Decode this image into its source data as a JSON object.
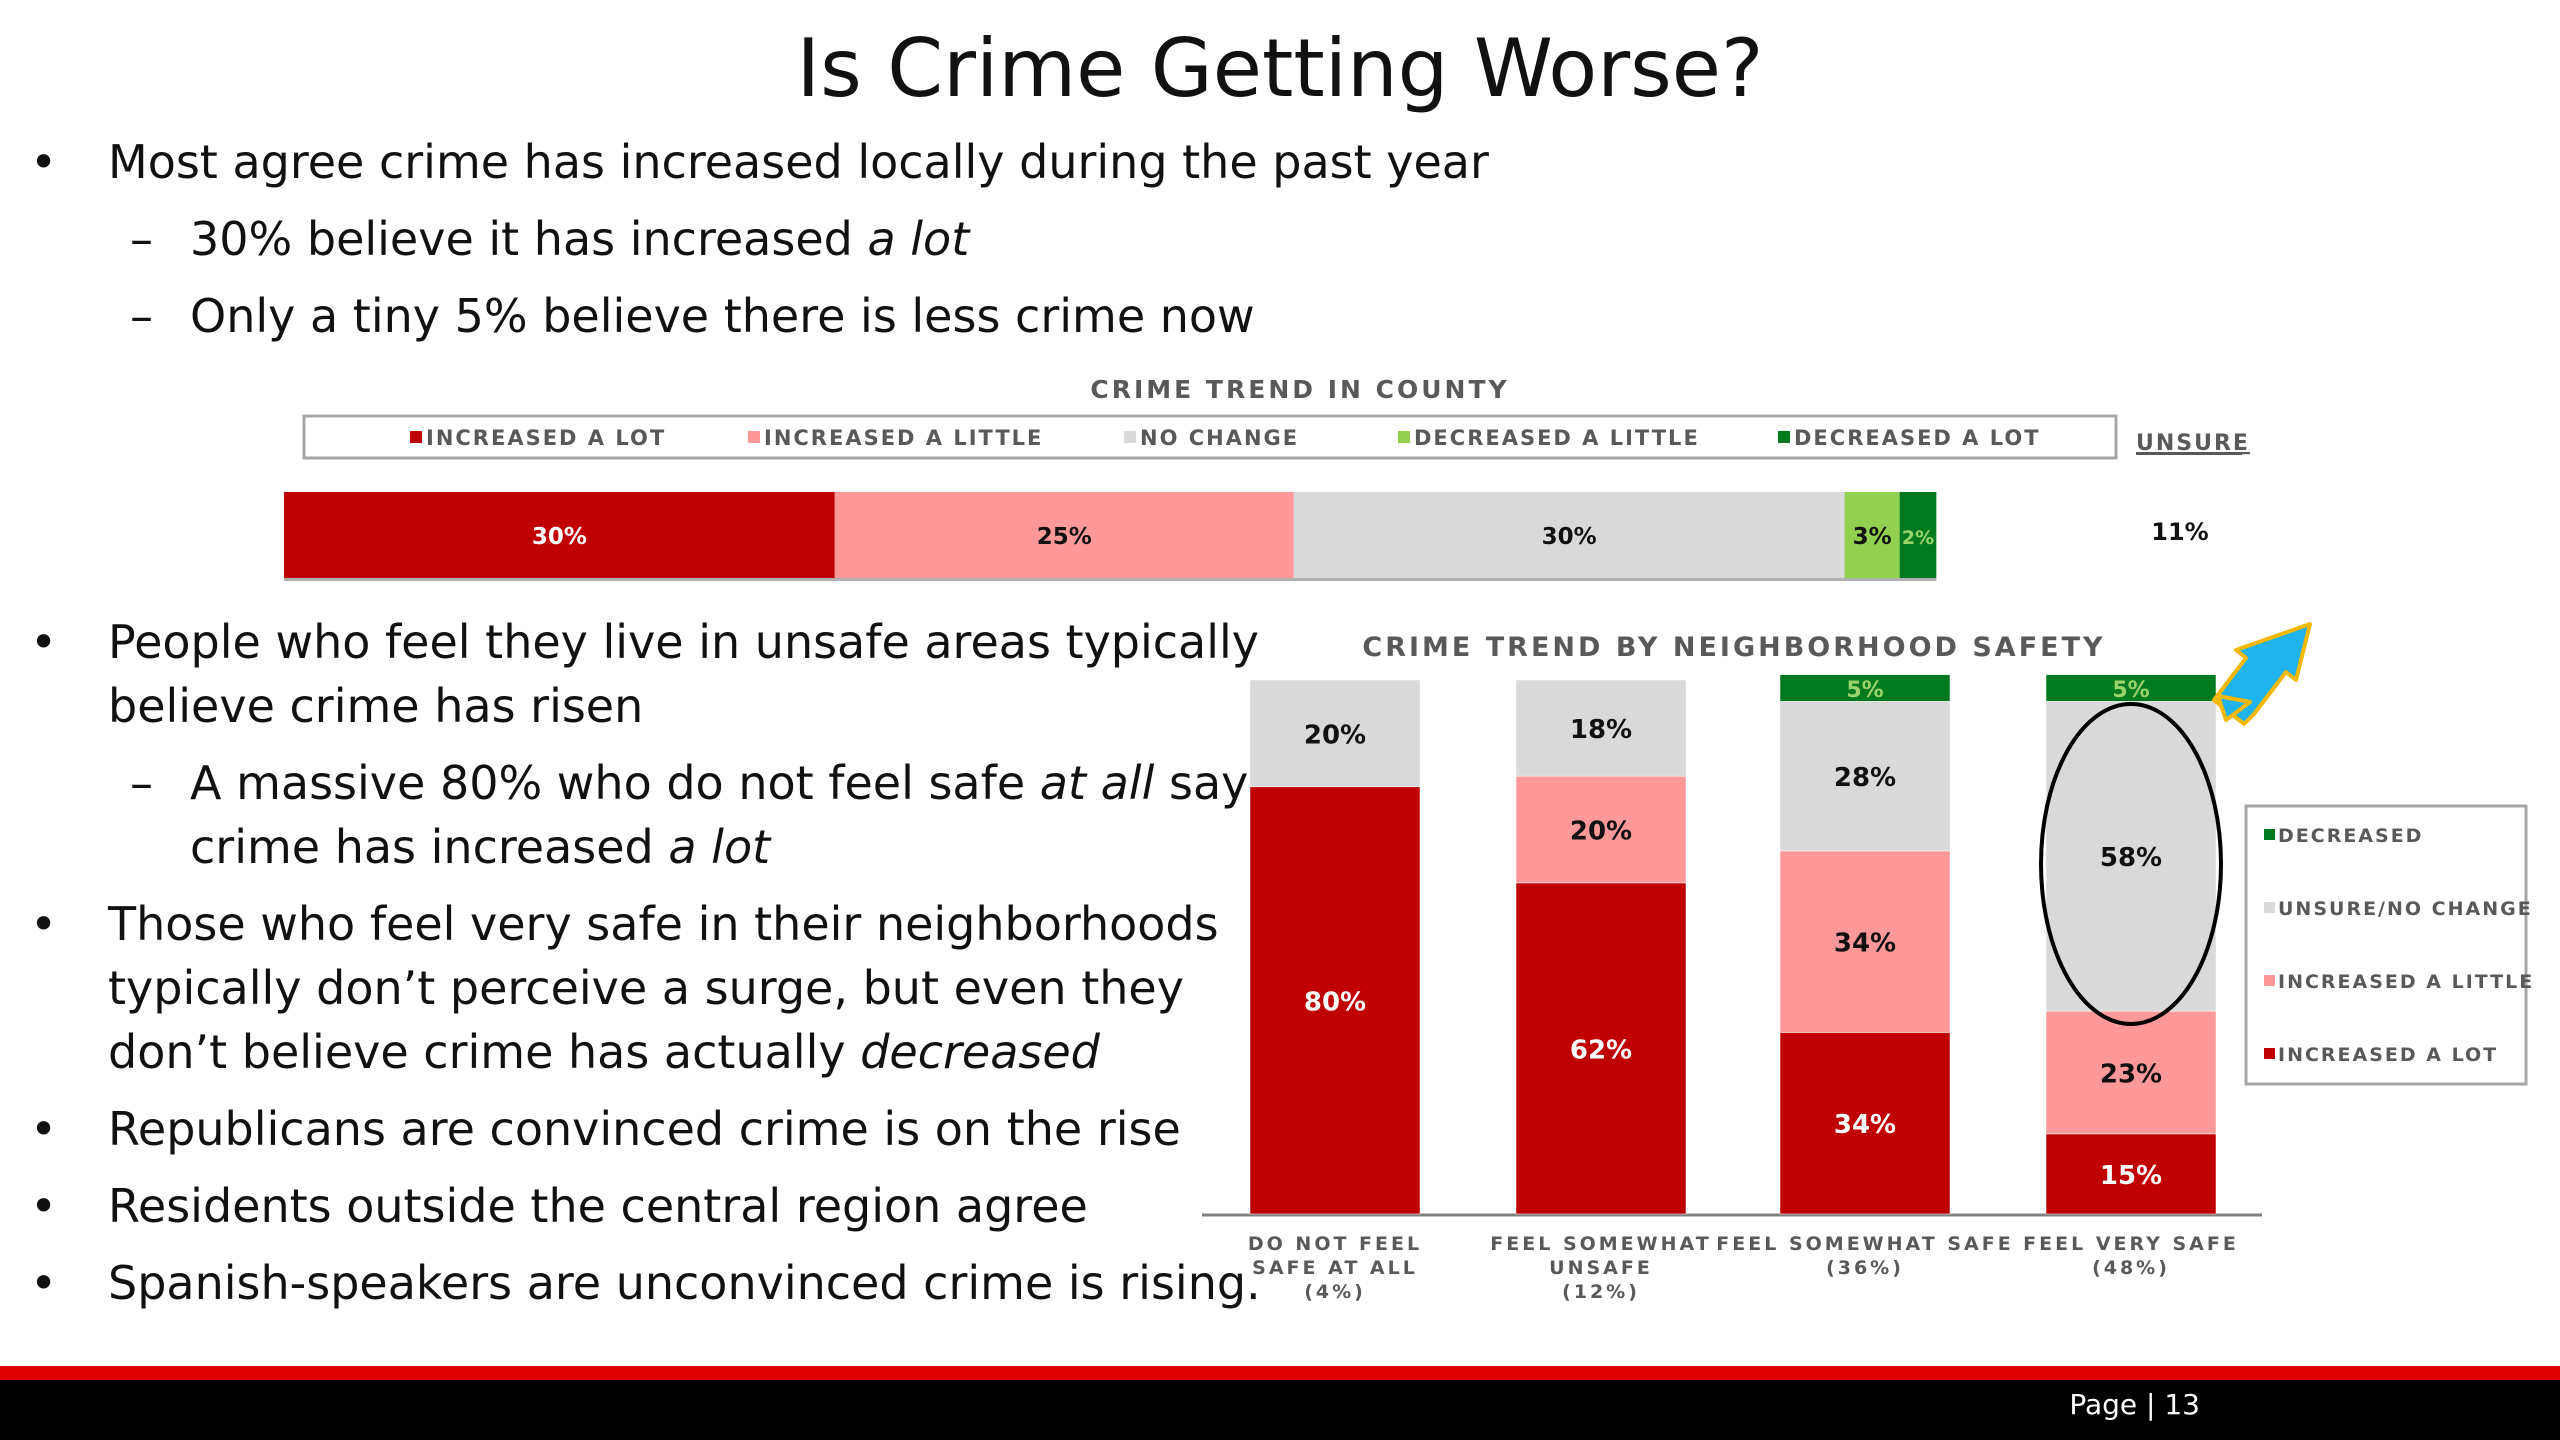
{
  "slide": {
    "title": "Is Crime Getting Worse?",
    "page_label": "Page",
    "page_sep": "|",
    "page_number": "13",
    "bullet_glyph": "•",
    "dash_glyph": "–"
  },
  "bullets_top": [
    {
      "level": 1,
      "segments": [
        {
          "t": "Most agree crime has increased locally during the past year"
        }
      ]
    },
    {
      "level": 2,
      "segments": [
        {
          "t": "30% believe it has increased "
        },
        {
          "t": "a lot",
          "i": true
        }
      ]
    },
    {
      "level": 2,
      "segments": [
        {
          "t": "Only a tiny 5% believe there is less crime now"
        }
      ]
    }
  ],
  "bullets_bottom": [
    {
      "level": 1,
      "segments": [
        {
          "t": "People who feel they live in unsafe areas typically"
        }
      ]
    },
    {
      "level": 0,
      "segments": [
        {
          "t": "believe crime has risen"
        }
      ]
    },
    {
      "level": 2,
      "segments": [
        {
          "t": "A massive 80% who do not feel safe "
        },
        {
          "t": "at all",
          "i": true
        },
        {
          "t": " say"
        }
      ]
    },
    {
      "level": 3,
      "segments": [
        {
          "t": "crime has increased "
        },
        {
          "t": "a lot",
          "i": true
        }
      ]
    },
    {
      "level": 1,
      "segments": [
        {
          "t": "Those who feel very safe in their neighborhoods"
        }
      ]
    },
    {
      "level": 0,
      "segments": [
        {
          "t": "typically don’t perceive a surge, but even they"
        }
      ]
    },
    {
      "level": 0,
      "segments": [
        {
          "t": "don’t believe crime has actually "
        },
        {
          "t": "decreased",
          "i": true
        }
      ]
    },
    {
      "level": 1,
      "segments": [
        {
          "t": "Republicans are convinced crime is on the rise"
        }
      ]
    },
    {
      "level": 1,
      "segments": [
        {
          "t": "Residents outside the central region agree"
        }
      ]
    },
    {
      "level": 1,
      "segments": [
        {
          "t": "Spanish-speakers are unconvinced crime is rising."
        }
      ]
    }
  ],
  "colors": {
    "increased_a_lot": "#c00000",
    "increased_a_little": "#ff9999",
    "no_change": "#d9d9d9",
    "decreased_a_little": "#92d050",
    "decreased_a_lot": "#007a1f",
    "text_gray": "#595959",
    "arrow": "#1fb3f0",
    "arrow_outline": "#f5b800"
  },
  "chart_data": [
    {
      "type": "bar",
      "orientation": "horizontal",
      "stacked": true,
      "title": "CRIME TREND IN COUNTY",
      "legend_position": "top",
      "series": [
        {
          "name": "INCREASED A LOT",
          "values": [
            30
          ],
          "labels": [
            "30%"
          ],
          "color": "#c00000"
        },
        {
          "name": "INCREASED A LITTLE",
          "values": [
            25
          ],
          "labels": [
            "25%"
          ],
          "color": "#ff9999"
        },
        {
          "name": "NO CHANGE",
          "values": [
            30
          ],
          "labels": [
            "30%"
          ],
          "color": "#d9d9d9"
        },
        {
          "name": "DECREASED A LITTLE",
          "values": [
            3
          ],
          "labels": [
            "3%"
          ],
          "color": "#92d050"
        },
        {
          "name": "DECREASED A LOT",
          "values": [
            2
          ],
          "labels": [
            "2%"
          ],
          "color": "#007a1f"
        }
      ],
      "side_label": "UNSURE",
      "side_value": "11%",
      "xlim": [
        0,
        90
      ]
    },
    {
      "type": "bar",
      "orientation": "vertical",
      "stacked": true,
      "title": "CRIME TREND BY NEIGHBORHOOD SAFETY",
      "legend_position": "right",
      "categories": [
        [
          "DO NOT FEEL",
          "SAFE AT ALL",
          "(4%)"
        ],
        [
          "FEEL SOMEWHAT",
          "UNSAFE",
          "(12%)"
        ],
        [
          "FEEL SOMEWHAT SAFE",
          "(36%)"
        ],
        [
          "FEEL VERY SAFE",
          "(48%)"
        ]
      ],
      "series": [
        {
          "name": "INCREASED A LOT",
          "values": [
            80,
            62,
            34,
            15
          ],
          "labels": [
            "80%",
            "62%",
            "34%",
            "15%"
          ],
          "color": "#c00000"
        },
        {
          "name": "INCREASED A LITTLE",
          "values": [
            0,
            20,
            34,
            23
          ],
          "labels": [
            "",
            "20%",
            "34%",
            "23%"
          ],
          "color": "#ff9999"
        },
        {
          "name": "UNSURE/NO CHANGE",
          "values": [
            20,
            18,
            28,
            58
          ],
          "labels": [
            "20%",
            "18%",
            "28%",
            "58%"
          ],
          "color": "#d9d9d9"
        },
        {
          "name": "DECREASED",
          "values": [
            0,
            0,
            5,
            5
          ],
          "labels": [
            "",
            "",
            "5%",
            "5%"
          ],
          "color": "#007a1f"
        }
      ],
      "ylim": [
        0,
        100
      ],
      "annotations": [
        "oval around FEEL VERY SAFE unsure/no change segment",
        "arrow pointing at FEEL VERY SAFE decreased segment"
      ]
    }
  ]
}
